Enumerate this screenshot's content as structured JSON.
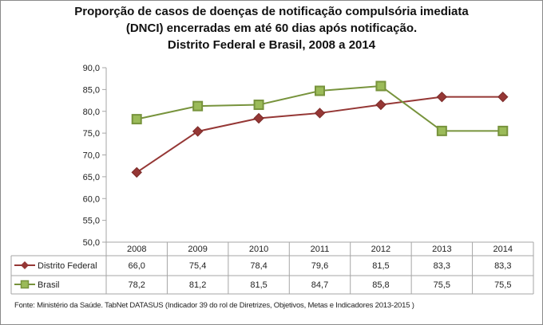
{
  "chart_data": {
    "type": "line",
    "title": [
      "Proporção de casos de doenças de notificação compulsória imediata",
      "(DNCI) encerradas em até 60 dias após notificação.",
      "Distrito Federal e Brasil, 2008 a 2014"
    ],
    "categories": [
      "2008",
      "2009",
      "2010",
      "2011",
      "2012",
      "2013",
      "2014"
    ],
    "series": [
      {
        "name": "Distrito Federal",
        "values": [
          66.0,
          75.4,
          78.4,
          79.6,
          81.5,
          83.3,
          83.3
        ],
        "labels": [
          "66,0",
          "75,4",
          "78,4",
          "79,6",
          "81,5",
          "83,3",
          "83,3"
        ],
        "color": "#953735",
        "marker": "diamond"
      },
      {
        "name": "Brasil",
        "values": [
          78.2,
          81.2,
          81.5,
          84.7,
          85.8,
          75.5,
          75.5
        ],
        "labels": [
          "78,2",
          "81,2",
          "81,5",
          "84,7",
          "85,8",
          "75,5",
          "75,5"
        ],
        "color": "#77933c",
        "marker_fill": "#9bbb59",
        "marker": "square"
      }
    ],
    "ylim": [
      50,
      90
    ],
    "yticks": [
      50,
      55,
      60,
      65,
      70,
      75,
      80,
      85,
      90
    ],
    "ytick_labels": [
      "50,0",
      "55,0",
      "60,0",
      "65,0",
      "70,0",
      "75,0",
      "80,0",
      "85,0",
      "90,0"
    ],
    "xlabel": "",
    "ylabel": "",
    "grid": false,
    "legend": "data-table-below"
  },
  "source": "Fonte: Ministério da Saúde. TabNet DATASUS (Indicador 39 do rol de Diretrizes, Objetivos, Metas e Indicadores 2013-2015 )"
}
